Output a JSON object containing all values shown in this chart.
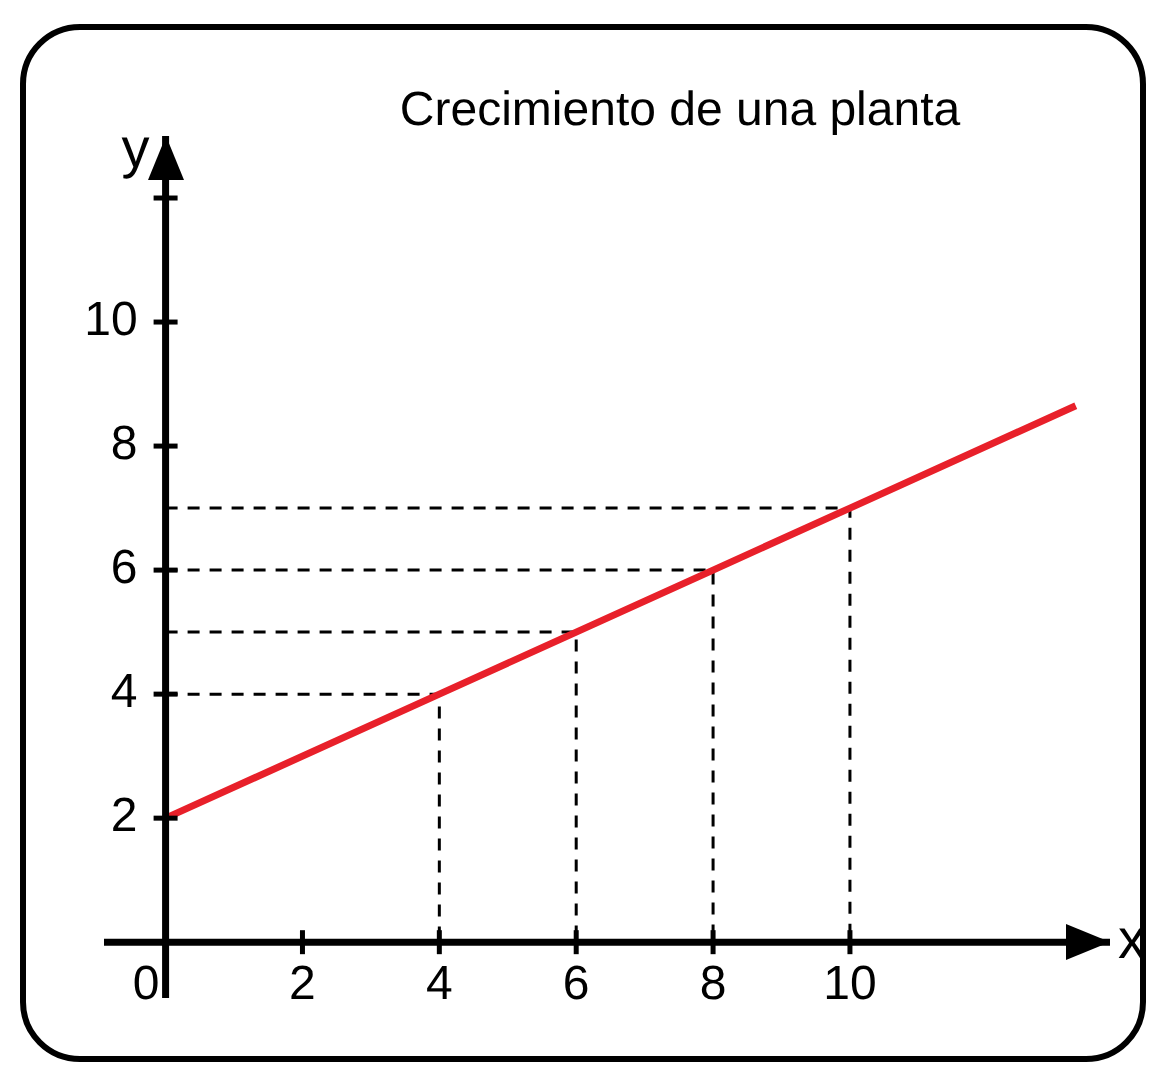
{
  "chart_data": {
    "type": "line",
    "title": "Crecimiento de una planta",
    "xlabel": "x",
    "ylabel": "y",
    "xlim": [
      -0.9,
      13.8
    ],
    "ylim": [
      -0.9,
      13
    ],
    "xticks": [
      {
        "value": 0,
        "label": "0"
      },
      2,
      4,
      6,
      8,
      10
    ],
    "yticks": [
      2,
      4,
      6,
      8,
      10,
      {
        "value": 12,
        "label": null
      }
    ],
    "grid": false,
    "legend": false,
    "marker": "none",
    "series": [
      {
        "color": "#e8202a",
        "x": [
          0,
          4,
          6,
          8,
          10,
          13.3
        ],
        "values": [
          2,
          4,
          5,
          6,
          7,
          8.65
        ],
        "line_style": "solid"
      },
      {
        "color": "#000000",
        "x": [
          0,
          4,
          4
        ],
        "values": [
          4,
          4,
          0
        ],
        "line_style": "dashed"
      },
      {
        "color": "#000000",
        "x": [
          0,
          6,
          6
        ],
        "values": [
          5,
          5,
          0
        ],
        "line_style": "dashed"
      },
      {
        "color": "#000000",
        "x": [
          0,
          8,
          8
        ],
        "values": [
          6,
          6,
          0
        ],
        "line_style": "dashed"
      },
      {
        "color": "#000000",
        "x": [
          0,
          10,
          10
        ],
        "values": [
          7,
          7,
          0
        ],
        "line_style": "dashed"
      }
    ]
  }
}
